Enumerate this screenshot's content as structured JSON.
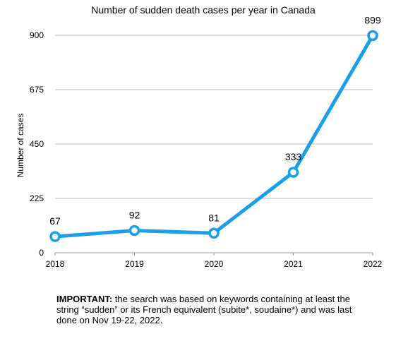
{
  "chart_data": {
    "type": "line",
    "title": "Number of sudden death cases per year in Canada",
    "xlabel": "",
    "ylabel": "Number of cases",
    "categories": [
      "2018",
      "2019",
      "2020",
      "2021",
      "2022"
    ],
    "series": [
      {
        "values": [
          67,
          92,
          81,
          333,
          899
        ]
      }
    ],
    "ylim": [
      0,
      900
    ],
    "yticks": [
      0,
      225,
      450,
      675,
      900
    ],
    "grid": true,
    "line_color": "#1a9fe8",
    "grid_color": "#bbbbbb"
  },
  "note": {
    "label": "IMPORTANT:",
    "text": " the search was based on keywords containing at least the string “sudden” or its French equivalent (subite*, soudaine*) and was last done on Nov 19-22, 2022."
  }
}
